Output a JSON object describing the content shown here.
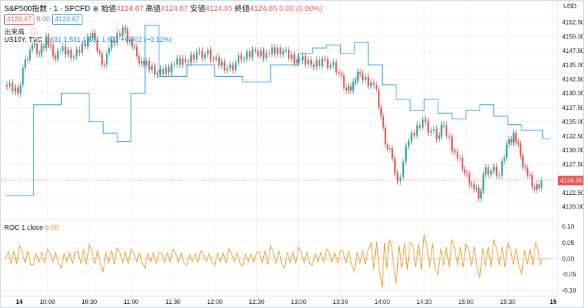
{
  "header": {
    "symbol": "S&P500指数 · 1 · SPCFD",
    "open_label": "始値",
    "open_value": "4124.67",
    "high_label": "高値",
    "high_value": "4124.67",
    "low_label": "安値",
    "low_value": "4124.65",
    "close_label": "終値",
    "close_value": "4124.65",
    "change": "0.00 (0.00%)",
    "badge_price1": "4124.67",
    "badge_zero": "0.00",
    "badge_price2": "4124.67",
    "volume_label": "出来高",
    "compare_label": "US10Y, TVC",
    "compare_values": "1.631 1.631 1.631 1.631 +0.002 (+0.11%)"
  },
  "roc_header": {
    "label": "ROC 1 close",
    "value": "0.00"
  },
  "colors": {
    "up": "#26a69a",
    "down": "#ef5350",
    "compare": "#2196f3",
    "roc": "#f7931a",
    "grid": "#eef0f3"
  },
  "price_axis": {
    "currency": "USD",
    "ticks": [
      "4152.50",
      "4150.00",
      "4147.50",
      "4145.00",
      "4142.50",
      "4140.00",
      "4137.50",
      "4135.00",
      "4132.50",
      "4130.00",
      "4127.50",
      "4125.00",
      "4122.50",
      "4120.00"
    ],
    "last_price_label": "4124.65"
  },
  "roc_axis": {
    "ticks": [
      "0.10",
      "0.05",
      "0.00",
      "-0.05",
      "-0.10"
    ]
  },
  "time_axis": {
    "labels": [
      "14",
      "10:00",
      "10:30",
      "11:00",
      "11:30",
      "12:00",
      "12:30",
      "13:00",
      "13:30",
      "14:00",
      "14:30",
      "15:00",
      "15:30",
      "15"
    ]
  },
  "chart_data": [
    {
      "type": "line",
      "series": [
        {
          "name": "S&P500指数",
          "x": [
            "09:30",
            "09:40",
            "09:45",
            "09:50",
            "09:55",
            "10:00",
            "10:05",
            "10:10",
            "10:20",
            "10:30",
            "10:35",
            "10:40",
            "10:45",
            "10:55",
            "11:00",
            "11:05",
            "11:10",
            "11:20",
            "11:30",
            "11:40",
            "11:50",
            "12:00",
            "12:10",
            "12:20",
            "12:30",
            "12:40",
            "12:50",
            "13:00",
            "13:10",
            "13:20",
            "13:30",
            "13:35",
            "13:40",
            "13:45",
            "13:55",
            "14:00",
            "14:03",
            "14:08",
            "14:12",
            "14:20",
            "14:30",
            "14:40",
            "14:45",
            "14:55",
            "15:00",
            "15:05",
            "15:10",
            "15:15",
            "15:25",
            "15:30",
            "15:35",
            "15:40",
            "15:45",
            "15:50",
            "15:55"
          ],
          "y": [
            4141.5,
            4140.0,
            4146.0,
            4148.5,
            4147.0,
            4150.0,
            4146.5,
            4147.5,
            4146.5,
            4150.0,
            4149.5,
            4145.0,
            4148.0,
            4151.5,
            4149.5,
            4146.5,
            4145.0,
            4143.5,
            4145.0,
            4145.5,
            4147.5,
            4146.0,
            4144.5,
            4146.0,
            4147.5,
            4147.0,
            4147.5,
            4146.0,
            4145.0,
            4146.0,
            4143.5,
            4140.5,
            4142.0,
            4143.5,
            4141.5,
            4136.0,
            4131.0,
            4128.5,
            4124.5,
            4131.5,
            4135.5,
            4132.0,
            4134.5,
            4128.5,
            4126.0,
            4124.0,
            4121.5,
            4127.0,
            4125.5,
            4131.0,
            4133.0,
            4129.0,
            4125.5,
            4123.0,
            4124.65
          ]
        },
        {
          "name": "US10Y, TVC",
          "x": [
            "09:30",
            "09:50",
            "10:10",
            "10:30",
            "10:40",
            "10:50",
            "11:00",
            "11:10",
            "11:20",
            "11:40",
            "12:00",
            "12:20",
            "12:40",
            "13:00",
            "13:10",
            "13:20",
            "13:30",
            "13:40",
            "13:50",
            "14:00",
            "14:10",
            "14:20",
            "14:30",
            "14:40",
            "14:50",
            "15:00",
            "15:10",
            "15:20",
            "15:30",
            "15:40",
            "15:55"
          ],
          "y": [
            4122.0,
            4138.0,
            4140.0,
            4135.0,
            4133.0,
            4131.5,
            4140.0,
            4152.0,
            4143.0,
            4145.0,
            4143.0,
            4142.0,
            4145.0,
            4147.0,
            4148.0,
            4148.5,
            4147.0,
            4149.0,
            4145.0,
            4141.5,
            4139.0,
            4137.0,
            4139.0,
            4136.5,
            4135.5,
            4137.0,
            4138.0,
            4136.0,
            4134.5,
            4133.5,
            4132.0
          ]
        }
      ],
      "ylim": [
        4119.0,
        4155.0
      ],
      "last_price": 4124.65
    },
    {
      "type": "line",
      "series": [
        {
          "name": "ROC 1 close",
          "x": [
            "09:30",
            "09:40",
            "09:50",
            "10:00",
            "10:10",
            "10:20",
            "10:30",
            "10:40",
            "10:50",
            "11:00",
            "11:10",
            "11:20",
            "11:30",
            "11:40",
            "11:50",
            "12:00",
            "12:10",
            "12:20",
            "12:30",
            "12:40",
            "12:50",
            "13:00",
            "13:10",
            "13:20",
            "13:30",
            "13:40",
            "13:50",
            "14:00",
            "14:05",
            "14:10",
            "14:20",
            "14:30",
            "14:40",
            "14:50",
            "15:00",
            "15:10",
            "15:20",
            "15:30",
            "15:40",
            "15:50",
            "15:55"
          ],
          "y": [
            0.0,
            0.04,
            -0.02,
            0.03,
            -0.03,
            0.02,
            0.045,
            -0.04,
            0.035,
            0.03,
            -0.03,
            0.02,
            0.03,
            -0.02,
            0.025,
            -0.02,
            0.03,
            -0.025,
            0.02,
            0.04,
            -0.03,
            0.035,
            -0.02,
            0.03,
            0.025,
            -0.04,
            0.03,
            -0.09,
            0.06,
            -0.08,
            0.05,
            0.075,
            -0.05,
            0.06,
            0.045,
            -0.06,
            0.06,
            0.05,
            -0.05,
            0.05,
            0.0
          ]
        }
      ],
      "ylim": [
        -0.11,
        0.11
      ]
    }
  ]
}
